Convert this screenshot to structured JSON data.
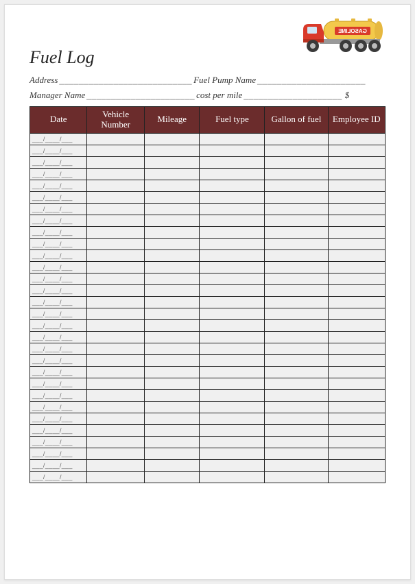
{
  "title": "Fuel Log",
  "info": {
    "address_label": "Address",
    "address_blank": "___________________________",
    "pump_label": " Fuel Pump Name",
    "pump_blank": "______________________",
    "manager_label": "Manager Name",
    "manager_blank": "______________________",
    "cost_label": " cost per mile ",
    "cost_blank": "____________________",
    "currency": "$"
  },
  "table": {
    "header_bg": "#6b2c2c",
    "header_color": "#ffffff",
    "cell_bg": "#f0f0f0",
    "border_color": "#222222",
    "columns": [
      "Date",
      "Vehicle Number",
      "Mileage",
      "Fuel type",
      "Gallon of fuel",
      "Employee ID"
    ],
    "row_count": 30,
    "date_placeholder": "___/____/___"
  },
  "truck": {
    "cab_color": "#d93a2a",
    "tank_color": "#f3c94b",
    "label_bg": "#d93a2a",
    "label_text": "GASOLINE",
    "wheel_color": "#3a3a3a",
    "hub_color": "#bbbbbb"
  }
}
